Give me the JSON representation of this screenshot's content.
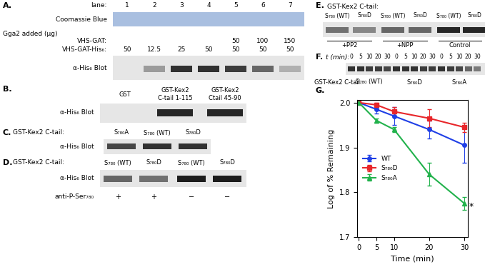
{
  "panels": {
    "A": {
      "label": "A.",
      "lane_title": "lane:",
      "lanes": [
        1,
        2,
        3,
        4,
        5,
        6,
        7
      ],
      "coomassie": "Coomassie Blue",
      "header": "Gga2 added (µg)",
      "rows": [
        {
          "name": "VHS-GAT:",
          "values": [
            null,
            null,
            null,
            null,
            50,
            100,
            150
          ]
        },
        {
          "name": "VHS-GAT-His₆:",
          "values": [
            50,
            12.5,
            25,
            50,
            50,
            50,
            50
          ]
        }
      ],
      "blot": "α-His₆ Blot"
    },
    "B": {
      "label": "B.",
      "blot": "α-His₆ Blot",
      "lanes": [
        "GST",
        "GST-Kex2 C-tail 1-115",
        "GST-Kex2 Ctail 45-90"
      ]
    },
    "C": {
      "label": "C.",
      "title": "GST-Kex2 C-tail:",
      "lanes": [
        "S₇₈₀A",
        "S₇₈₀ (WT)",
        "S₇₈₀D"
      ],
      "blot": "α-His₆ Blot"
    },
    "D": {
      "label": "D.",
      "title": "GST-Kex2 C-tail:",
      "lanes": [
        "S₇₈₀ (WT)",
        "S₇₈₀D",
        "S₇₈₀ (WT)",
        "S₇₈₀D"
      ],
      "blot": "α-His₆ Blot",
      "row": {
        "name": "anti-P-Ser₇₈₀",
        "values": [
          "+",
          "+",
          "−",
          "−"
        ]
      }
    },
    "E": {
      "label": "E.",
      "title": "GST-Kex2 C-tail:",
      "lanes": [
        "S₇₈₀ (WT)",
        "S₇₈₀D",
        "S₇₈₀ (WT)",
        "S₇₈₀D",
        "S₇₈₀ (WT)",
        "S₇₈₀D"
      ],
      "groups": [
        "+PP2",
        "+NPP",
        "Control"
      ]
    },
    "F": {
      "label": "F.",
      "time_title": "t (min):",
      "times": [
        0,
        5,
        10,
        20,
        30
      ],
      "title": "GST-Kex2 C-tail:",
      "groups": [
        "S₇₈₀ (WT)",
        "S₇₈₀D",
        "S₇₈₀A"
      ]
    }
  },
  "chart_data": {
    "type": "line",
    "title": "G.",
    "x": [
      0,
      5,
      10,
      20,
      30
    ],
    "xlabel": "Time (min)",
    "ylabel": "Log of % Remaining",
    "xlim": [
      -0.5,
      31
    ],
    "ylim": [
      1.7,
      2.006
    ],
    "xticks": [
      0,
      5,
      10,
      20,
      30
    ],
    "yticks": [
      1.7,
      1.8,
      1.9,
      2.0
    ],
    "legend": "center left",
    "series": [
      {
        "name": "WT",
        "color": "#1f3fe6",
        "marker": "o",
        "values": [
          2.0,
          1.985,
          1.97,
          1.94,
          1.905
        ],
        "errors": [
          0,
          0.01,
          0.02,
          0.02,
          0.04
        ]
      },
      {
        "name": "S₇₈₀D",
        "color": "#e8262a",
        "marker": "s",
        "values": [
          2.0,
          1.995,
          1.98,
          1.965,
          1.945
        ],
        "errors": [
          0,
          0.005,
          0.01,
          0.02,
          0.01
        ]
      },
      {
        "name": "S₇₈₀A",
        "color": "#22b24c",
        "marker": "^",
        "values": [
          2.0,
          1.96,
          1.94,
          1.84,
          1.775
        ],
        "errors": [
          0,
          0.005,
          0.005,
          0.025,
          0.015
        ]
      }
    ],
    "annotations": [
      {
        "text": "*",
        "x": 30,
        "series": "S₇₈₀A"
      }
    ]
  }
}
